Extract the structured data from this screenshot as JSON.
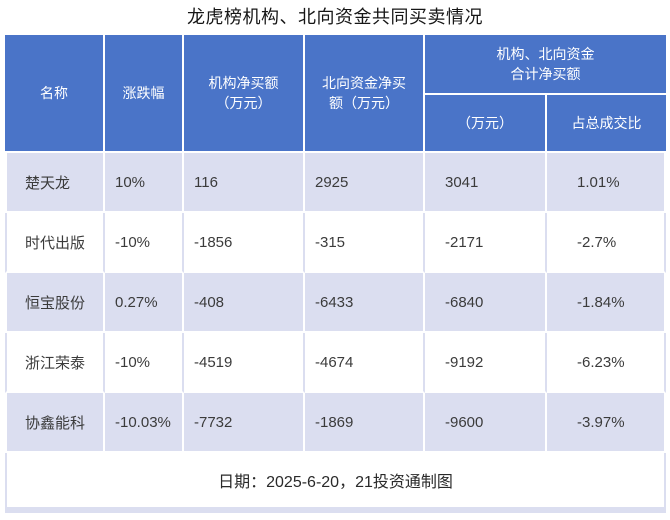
{
  "title": "龙虎榜机构、北向资金共同买卖情况",
  "colors": {
    "header_bg": "#4a74c8",
    "row_alt_bg": "#dbdef0",
    "row_bg": "#ffffff",
    "header_text": "#ffffff",
    "body_text": "#3b3b3b"
  },
  "table": {
    "columns": {
      "name": "名称",
      "change": "涨跌幅",
      "inst_net": "机构净买额\n（万元）",
      "north_net": "北向资金净买\n额（万元）"
    },
    "group_header": {
      "label": "机构、北向资金\n合计净买额",
      "sub_unit": "（万元）",
      "sub_ratio": "占总成交比"
    },
    "rows": [
      {
        "name": "楚天龙",
        "change": "10%",
        "inst_net": "116",
        "north_net": "2925",
        "total_net": "3041",
        "ratio": "1.01%"
      },
      {
        "name": "时代出版",
        "change": "-10%",
        "inst_net": "-1856",
        "north_net": "-315",
        "total_net": "-2171",
        "ratio": "-2.7%"
      },
      {
        "name": "恒宝股份",
        "change": "0.27%",
        "inst_net": "-408",
        "north_net": "-6433",
        "total_net": "-6840",
        "ratio": "-1.84%"
      },
      {
        "name": "浙江荣泰",
        "change": "-10%",
        "inst_net": "-4519",
        "north_net": "-4674",
        "total_net": "-9192",
        "ratio": "-6.23%"
      },
      {
        "name": "协鑫能科",
        "change": "-10.03%",
        "inst_net": "-7732",
        "north_net": "-1869",
        "total_net": "-9600",
        "ratio": "-3.97%"
      }
    ],
    "footer": "日期：2025-6-20，21投资通制图"
  }
}
